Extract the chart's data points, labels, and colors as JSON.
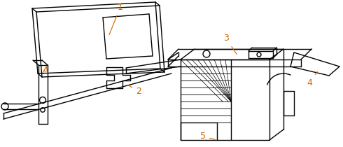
{
  "line_color": "#000000",
  "label_color": "#cc6600",
  "bg_color": "#ffffff",
  "figsize": [
    4.9,
    2.1
  ],
  "dpi": 100
}
